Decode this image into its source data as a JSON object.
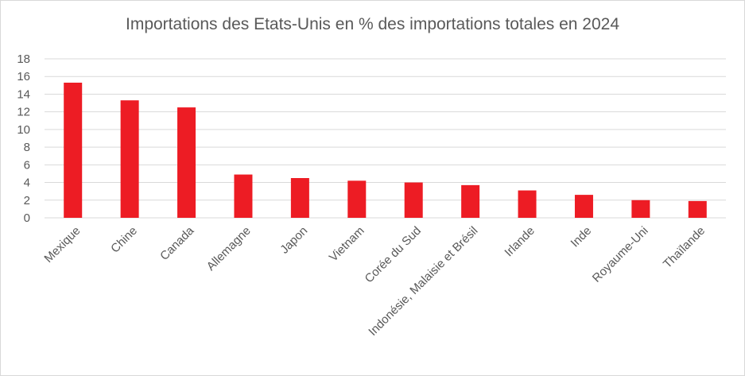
{
  "chart_data": {
    "type": "bar",
    "title": "Importations des Etats-Unis en % des importations totales en 2024",
    "xlabel": "",
    "ylabel": "",
    "categories": [
      "Mexique",
      "Chine",
      "Canada",
      "Allemagne",
      "Japon",
      "Vietnam",
      "Corée du Sud",
      "Indonésie, Malaisie et Brésil",
      "Irlande",
      "Inde",
      "Royaume-Uni",
      "Thaïlande"
    ],
    "values": [
      15.3,
      13.3,
      12.5,
      4.9,
      4.5,
      4.2,
      4.0,
      3.7,
      3.1,
      2.6,
      2.0,
      1.9
    ],
    "ylim": [
      0,
      18
    ],
    "yticks": [
      0,
      2,
      4,
      6,
      8,
      10,
      12,
      14,
      16,
      18
    ],
    "grid": true,
    "legend": "none",
    "colors": {
      "bar": "#ed1c24",
      "grid": "#d9d9d9",
      "text": "#595959"
    }
  }
}
